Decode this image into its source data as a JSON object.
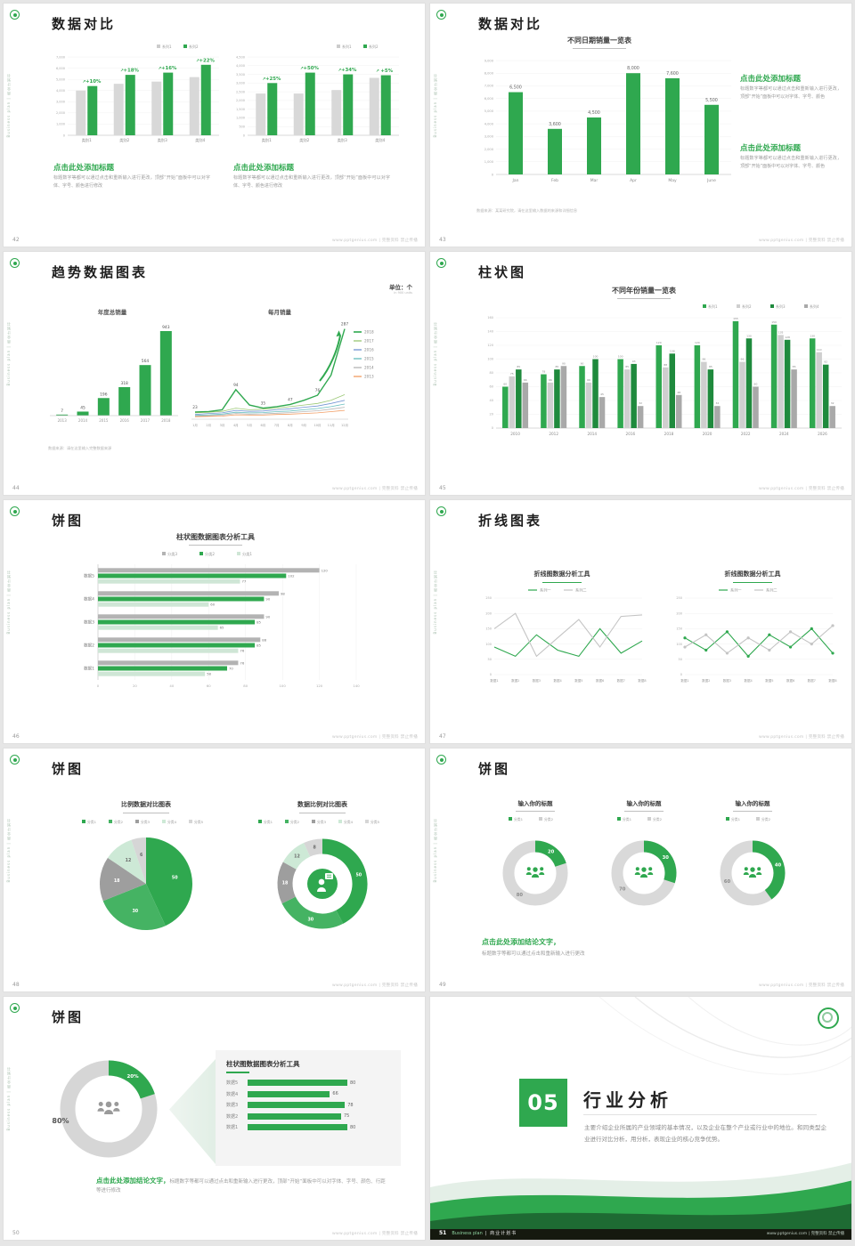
{
  "global": {
    "sidebar_text": "Business plan | 商业计划书",
    "watermark": "www.pptgenius.com | 完整资料 禁止传播",
    "colors": {
      "green": "#2fa84f",
      "green_mid": "#45b363",
      "green_light": "#cfe6d6",
      "gray": "#b3b3b3",
      "gray_light": "#d8d8d8"
    }
  },
  "slides": [
    {
      "number": "42",
      "title": "数据对比",
      "type": "bar_compare",
      "panels": [
        {
          "legend": [
            "系列1",
            "系列2"
          ],
          "y_ticks": [
            "7,000",
            "6,000",
            "5,000",
            "4,000",
            "3,000",
            "2,000",
            "1,000",
            "0"
          ],
          "y_max": 7000,
          "categories": [
            "类别1",
            "类别2",
            "类别3",
            "类别4"
          ],
          "series_base": [
            4000,
            4600,
            4800,
            5200
          ],
          "series_new": [
            4400,
            5400,
            5600,
            6300
          ],
          "growth": [
            "+10%",
            "+18%",
            "+16%",
            "+22%"
          ],
          "heading": "点击此处添加标题",
          "body": "标题数字等都可以通过点击和重新输入进行更改，顶部“开始”面板中可以对字体、字号、颜色进行修改"
        },
        {
          "legend": [
            "系列1",
            "系列2"
          ],
          "y_ticks": [
            "4,500",
            "4,000",
            "3,500",
            "3,000",
            "2,500",
            "2,000",
            "1,500",
            "1,000",
            "500",
            "0"
          ],
          "y_max": 4500,
          "categories": [
            "类别1",
            "类别2",
            "类别3",
            "类别4"
          ],
          "series_base": [
            2400,
            2400,
            2600,
            3300
          ],
          "series_new": [
            3000,
            3600,
            3500,
            3450
          ],
          "growth": [
            "+25%",
            "+50%",
            "+34%",
            "+5%"
          ],
          "heading": "点击此处添加标题",
          "body": "标题数字等都可以通过点击和重新输入进行更改，顶部“开始”面板中可以对字体、字号、颜色进行修改"
        }
      ]
    },
    {
      "number": "43",
      "title": "数据对比",
      "type": "bar_single",
      "chart_title": "不同日期销量一览表",
      "y_ticks": [
        "9,000",
        "8,000",
        "7,000",
        "6,000",
        "5,000",
        "4,000",
        "3,000",
        "2,000",
        "1,000",
        "0"
      ],
      "y_max": 9000,
      "categories": [
        "Jan",
        "Feb",
        "Mar",
        "Apr",
        "May",
        "June"
      ],
      "values": [
        6500,
        3600,
        4500,
        8000,
        7600,
        5500
      ],
      "value_labels": [
        "6,500",
        "3,600",
        "4,500",
        "8,000",
        "7,600",
        "5,500"
      ],
      "note": "数据来源：某某研究院，请在这里输入数据的来源和详细信息",
      "blocks": [
        {
          "heading": "点击此处添加标题",
          "body": "标题数字等都可以通过点击和重新输入进行更改，顶部“开始”面板中可以对字体、字号、颜色"
        },
        {
          "heading": "点击此处添加标题",
          "body": "标题数字等都可以通过点击和重新输入进行更改，顶部“开始”面板中可以对字体、字号、颜色"
        }
      ]
    },
    {
      "number": "44",
      "title": "趋势数据图表",
      "type": "trend",
      "unit_label": "单位：个",
      "unit_sub": "in 900 units",
      "left_chart": {
        "title": "年度总销量",
        "categories": [
          "2013",
          "2014",
          "2015",
          "2016",
          "2017",
          "2018"
        ],
        "values": [
          7,
          45,
          196,
          318,
          564,
          943
        ]
      },
      "right_chart": {
        "title": "每月销量",
        "x_labels": [
          "1月",
          "2月",
          "3月",
          "4月",
          "5月",
          "6月",
          "7月",
          "8月",
          "9月",
          "10月",
          "11月",
          "12月"
        ],
        "legend": [
          "2018",
          "2017",
          "2016",
          "2015",
          "2014",
          "2013"
        ],
        "series": [
          {
            "name": "2018",
            "values": [
              23,
              24,
              30,
              94,
              45,
              35,
              40,
              47,
              60,
              76,
              140,
              287
            ]
          },
          {
            "name": "2017",
            "values": [
              20,
              22,
              25,
              35,
              30,
              32,
              35,
              40,
              45,
              50,
              60,
              78
            ]
          },
          {
            "name": "2016",
            "values": [
              15,
              18,
              20,
              28,
              25,
              26,
              30,
              33,
              38,
              42,
              50,
              60
            ]
          },
          {
            "name": "2015",
            "values": [
              12,
              14,
              16,
              22,
              20,
              21,
              24,
              26,
              30,
              34,
              40,
              48
            ]
          },
          {
            "name": "2014",
            "values": [
              10,
              11,
              13,
              18,
              16,
              17,
              19,
              21,
              24,
              27,
              32,
              38
            ]
          },
          {
            "name": "2013",
            "values": [
              8,
              9,
              10,
              14,
              13,
              13,
              15,
              16,
              18,
              20,
              24,
              28
            ]
          }
        ],
        "point_labels": [
          {
            "i": 0,
            "v": "23"
          },
          {
            "i": 3,
            "v": "94"
          },
          {
            "i": 5,
            "v": "35"
          },
          {
            "i": 7,
            "v": "47"
          },
          {
            "i": 9,
            "v": "76"
          },
          {
            "i": 11,
            "v": "287"
          }
        ]
      },
      "note": "数据来源：请在这里输入完整数据来源"
    },
    {
      "number": "45",
      "title": "柱状图",
      "type": "bar_grouped",
      "chart_title": "不同年份销量一览表",
      "legend": [
        "系列1",
        "系列2",
        "系列3",
        "系列4"
      ],
      "y_ticks": [
        "160",
        "140",
        "120",
        "100",
        "80",
        "60",
        "40",
        "20",
        "0"
      ],
      "y_max": 160,
      "categories": [
        "2010",
        "2012",
        "2014",
        "2016",
        "2018",
        "2020",
        "2022",
        "2024",
        "2026"
      ],
      "series": [
        {
          "name": "系列1",
          "values": [
            60,
            78,
            90,
            100,
            120,
            120,
            155,
            150,
            130
          ]
        },
        {
          "name": "系列2",
          "values": [
            75,
            66,
            66,
            85,
            88,
            96,
            96,
            135,
            110
          ]
        },
        {
          "name": "系列3",
          "values": [
            85,
            85,
            100,
            93,
            108,
            85,
            130,
            128,
            92
          ]
        },
        {
          "name": "系列4",
          "values": [
            66,
            90,
            45,
            32,
            48,
            32,
            60,
            85,
            32
          ]
        }
      ]
    },
    {
      "number": "46",
      "title": "饼图",
      "type": "hbar_grouped",
      "chart_title": "柱状图数据图表分析工具",
      "legend": [
        "分类3",
        "分类2",
        "分类1"
      ],
      "categories": [
        "数据5",
        "数据4",
        "数据3",
        "数据2",
        "数据1"
      ],
      "series": [
        {
          "name": "分类3",
          "values": [
            120,
            98,
            90,
            88,
            76
          ]
        },
        {
          "name": "分类2",
          "values": [
            102,
            90,
            85,
            85,
            70
          ]
        },
        {
          "name": "分类1",
          "values": [
            77,
            60,
            65,
            76,
            58
          ]
        }
      ],
      "x_ticks": [
        "0",
        "20",
        "40",
        "60",
        "80",
        "100",
        "120",
        "140"
      ],
      "x_max": 140
    },
    {
      "number": "47",
      "title": "折线图表",
      "type": "line_two",
      "panels": [
        {
          "chart_title": "折线图数据分析工具",
          "legend": [
            "系列一",
            "系列二"
          ],
          "y_ticks": [
            "250",
            "200",
            "150",
            "100",
            "50",
            "0"
          ],
          "y_max": 250,
          "x_labels": [
            "数据1",
            "数据2",
            "数据3",
            "数据4",
            "数据5",
            "数据6",
            "数据7",
            "数据8"
          ],
          "series": [
            {
              "name": "系列一",
              "values": [
                90,
                60,
                130,
                80,
                60,
                150,
                70,
                110
              ]
            },
            {
              "name": "系列二",
              "values": [
                150,
                200,
                60,
                120,
                180,
                90,
                190,
                195
              ]
            }
          ],
          "markers": false
        },
        {
          "chart_title": "折线图数据分析工具",
          "legend": [
            "系列一",
            "系列二"
          ],
          "y_ticks": [
            "250",
            "200",
            "150",
            "100",
            "50",
            "0"
          ],
          "y_max": 250,
          "x_labels": [
            "数据1",
            "数据2",
            "数据3",
            "数据4",
            "数据5",
            "数据6",
            "数据7",
            "数据8"
          ],
          "series": [
            {
              "name": "系列一",
              "values": [
                120,
                80,
                140,
                60,
                130,
                90,
                150,
                70
              ]
            },
            {
              "name": "系列二",
              "values": [
                90,
                130,
                70,
                120,
                80,
                140,
                100,
                160
              ]
            }
          ],
          "markers": true
        }
      ]
    },
    {
      "number": "48",
      "title": "饼图",
      "type": "pie_two",
      "left": {
        "chart_title": "比例数据对比图表",
        "legend": [
          "分类1",
          "分类2",
          "分类3",
          "分类4",
          "分类5"
        ],
        "values": [
          50,
          30,
          18,
          12,
          6
        ],
        "labels": [
          "50",
          "30",
          "18",
          "12",
          "6"
        ],
        "donut": false
      },
      "right": {
        "chart_title": "数据比例对比图表",
        "legend": [
          "分类1",
          "分类2",
          "分类3",
          "分类4",
          "分类5"
        ],
        "values": [
          50,
          30,
          18,
          12,
          8
        ],
        "labels": [
          "50",
          "30",
          "18",
          "12",
          "8"
        ],
        "donut": true
      }
    },
    {
      "number": "49",
      "title": "饼图",
      "type": "donut_three",
      "items": [
        {
          "heading": "输入你的标题",
          "legend": [
            "分类1",
            "分类2"
          ],
          "green": 20,
          "gray": 80
        },
        {
          "heading": "输入你的标题",
          "legend": [
            "分类1",
            "分类2"
          ],
          "green": 30,
          "gray": 70
        },
        {
          "heading": "输入你的标题",
          "legend": [
            "分类1",
            "分类2"
          ],
          "green": 40,
          "gray": 60
        }
      ],
      "conclusion_heading": "点击此处添加结论文字，",
      "conclusion_body": "标题数字等都可以通过点击和重新输入进行更改"
    },
    {
      "number": "50",
      "title": "饼图",
      "type": "donut_funnel",
      "donut": {
        "green": 20,
        "gray": 80,
        "green_label": "20%",
        "gray_label": "80%"
      },
      "panel": {
        "chart_title": "柱状图数据图表分析工具",
        "categories": [
          "数据5",
          "数据4",
          "数据3",
          "数据2",
          "数据1"
        ],
        "values": [
          80,
          66,
          78,
          75,
          80
        ],
        "x_max": 100
      },
      "conclusion_heading": "点击此处添加结论文字，",
      "conclusion_body": "标题数字等都可以通过点击和重新输入进行更改，顶部“开始”面板中可以对字体、字号、颜色、行距等进行修改"
    },
    {
      "number": "51",
      "type": "divider",
      "section_number": "05",
      "section_title": "行业分析",
      "body": "主要介绍企业所属的产业领域的基本情况，以及企业在整个产业或行业中的地位。和同类型企业进行对比分析，用分析，表现企业的核心竞争优势。",
      "footer_brand": "Business plan",
      "footer_cn": "| 商业计划书"
    }
  ]
}
